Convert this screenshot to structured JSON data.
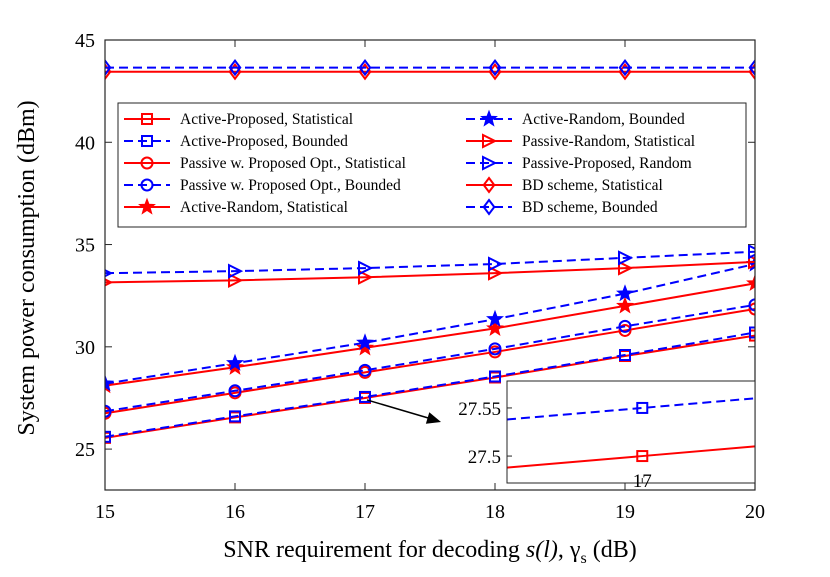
{
  "chart_data": {
    "type": "line",
    "title": "",
    "xlabel": {
      "prefix": "SNR requirement for decoding ",
      "signal": "s(l)",
      "sep": ", ",
      "gamma": "γ",
      "sub": "s",
      "unit": " (dB)"
    },
    "ylabel": "System power consumption (dBm)",
    "xlim": [
      15,
      20
    ],
    "ylim": [
      23,
      45
    ],
    "x": [
      15,
      16,
      17,
      18,
      19,
      20
    ],
    "xticks": [
      15,
      16,
      17,
      18,
      19,
      20
    ],
    "yticks": [
      25,
      30,
      35,
      40,
      45
    ],
    "grid": false,
    "legend_position": "upper-center",
    "series": [
      {
        "name": "Active-Proposed, Statistical",
        "color": "#ff0000",
        "dash": "solid",
        "marker": "square",
        "values": [
          25.55,
          26.55,
          27.5,
          28.5,
          29.55,
          30.55
        ]
      },
      {
        "name": "Active-Proposed, Bounded",
        "color": "#0000ff",
        "dash": "dashed",
        "marker": "square",
        "values": [
          25.6,
          26.6,
          27.55,
          28.55,
          29.6,
          30.7
        ]
      },
      {
        "name": "Passive w. Proposed Opt., Statistical",
        "color": "#ff0000",
        "dash": "solid",
        "marker": "circle",
        "values": [
          26.75,
          27.75,
          28.75,
          29.75,
          30.8,
          31.85
        ]
      },
      {
        "name": "Passive w. Proposed Opt., Bounded",
        "color": "#0000ff",
        "dash": "dashed",
        "marker": "circle",
        "values": [
          26.85,
          27.85,
          28.85,
          29.9,
          31.0,
          32.05
        ]
      },
      {
        "name": "Active-Random, Statistical",
        "color": "#ff0000",
        "dash": "solid",
        "marker": "star",
        "values": [
          28.1,
          29.0,
          29.95,
          30.9,
          32.0,
          33.1
        ]
      },
      {
        "name": "Active-Random, Bounded",
        "color": "#0000ff",
        "dash": "dashed",
        "marker": "star",
        "values": [
          28.2,
          29.2,
          30.2,
          31.35,
          32.6,
          34.05
        ]
      },
      {
        "name": "Passive-Random, Statistical",
        "color": "#ff0000",
        "dash": "solid",
        "marker": "triangle-right",
        "values": [
          33.15,
          33.25,
          33.4,
          33.6,
          33.85,
          34.15
        ]
      },
      {
        "name": "Passive-Proposed, Random",
        "color": "#0000ff",
        "dash": "dashed",
        "marker": "triangle-right",
        "values": [
          33.6,
          33.7,
          33.85,
          34.05,
          34.35,
          34.65
        ]
      },
      {
        "name": "BD scheme, Statistical",
        "color": "#ff0000",
        "dash": "solid",
        "marker": "diamond",
        "values": [
          43.45,
          43.45,
          43.45,
          43.45,
          43.45,
          43.45
        ]
      },
      {
        "name": "BD scheme, Bounded",
        "color": "#0000ff",
        "dash": "dashed",
        "marker": "diamond",
        "values": [
          43.65,
          43.65,
          43.65,
          43.65,
          43.65,
          43.65
        ]
      }
    ],
    "inset": {
      "xlim": [
        16.88,
        17.1
      ],
      "ylim": [
        27.472,
        27.578
      ],
      "xticks": [
        17
      ],
      "yticks": [
        27.5,
        27.55
      ],
      "ytick_labels": [
        "27.5",
        "27.55"
      ],
      "xtick_labels": [
        "17"
      ],
      "zoom_target": {
        "x": 17,
        "y": 27.5
      },
      "series": [
        {
          "color": "#0000ff",
          "dash": "dashed",
          "marker": "square",
          "points": [
            [
              16.88,
              27.538
            ],
            [
              17,
              27.55
            ],
            [
              17.1,
              27.56
            ]
          ]
        },
        {
          "color": "#ff0000",
          "dash": "solid",
          "marker": "square",
          "points": [
            [
              16.88,
              27.488
            ],
            [
              17,
              27.5
            ],
            [
              17.1,
              27.51
            ]
          ]
        }
      ]
    }
  }
}
